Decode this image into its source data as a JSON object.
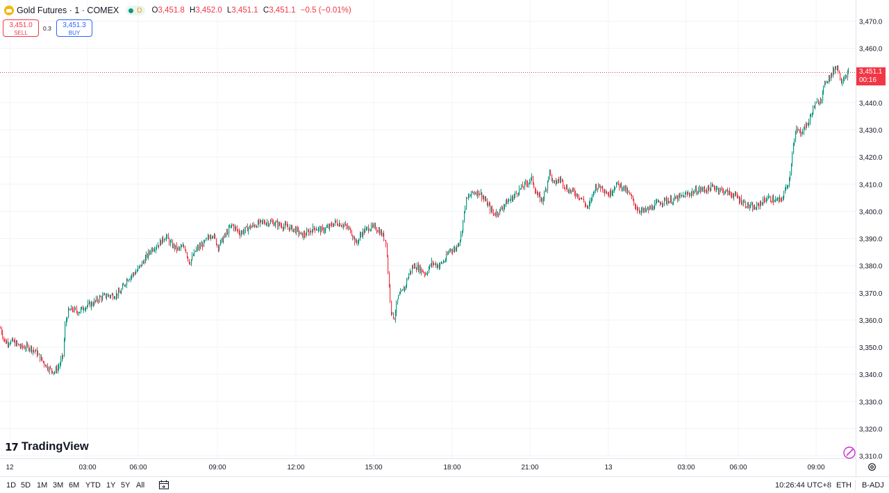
{
  "legend": {
    "symbol": "Gold Futures · 1 · COMEX",
    "status": "D",
    "ohlc": [
      {
        "k": "O",
        "v": "3,451.8"
      },
      {
        "k": "H",
        "v": "3,452.0"
      },
      {
        "k": "L",
        "v": "3,451.1"
      },
      {
        "k": "C",
        "v": "3,451.1"
      }
    ],
    "change": "−0.5 (−0.01%)"
  },
  "trade": {
    "sell_price": "3,451.0",
    "sell_label": "SELL",
    "spread": "0.3",
    "buy_price": "3,451.3",
    "buy_label": "BUY"
  },
  "price_tag": {
    "price": "3,451.1",
    "countdown": "00:16"
  },
  "brand": "TradingView",
  "bottom": {
    "timeframes": [
      "1D",
      "5D",
      "1M",
      "3M",
      "6M",
      "YTD",
      "1Y",
      "5Y",
      "All"
    ],
    "clock": "10:26:44 UTC+8",
    "session": "ETH",
    "adjust": "B-ADJ"
  },
  "colors": {
    "up": "#089981",
    "down": "#f23645",
    "grid": "#f0f3fa",
    "text": "#131722"
  },
  "chart_data": {
    "type": "candlestick",
    "y_ticks": [
      "3,310.0",
      "3,320.0",
      "3,330.0",
      "3,340.0",
      "3,350.0",
      "3,360.0",
      "3,370.0",
      "3,380.0",
      "3,390.0",
      "3,400.0",
      "3,410.0",
      "3,420.0",
      "3,430.0",
      "3,440.0",
      "3,450.0",
      "3,460.0",
      "3,470.0"
    ],
    "ylim": [
      3309,
      3476
    ],
    "x_ticks": [
      "12",
      "03:00",
      "06:00",
      "09:00",
      "12:00",
      "15:00",
      "18:00",
      "21:00",
      "13",
      "03:00",
      "06:00",
      "09:00"
    ],
    "last_price": 3451.1,
    "price_path": [
      [
        0,
        3357
      ],
      [
        6,
        3352
      ],
      [
        18,
        3352
      ],
      [
        30,
        3350
      ],
      [
        42,
        3350
      ],
      [
        52,
        3348
      ],
      [
        60,
        3345
      ],
      [
        70,
        3342
      ],
      [
        78,
        3341
      ],
      [
        84,
        3343
      ],
      [
        90,
        3347
      ],
      [
        93,
        3358
      ],
      [
        97,
        3363
      ],
      [
        103,
        3364
      ],
      [
        112,
        3363
      ],
      [
        122,
        3365
      ],
      [
        132,
        3366
      ],
      [
        142,
        3368
      ],
      [
        152,
        3369
      ],
      [
        162,
        3369
      ],
      [
        172,
        3370
      ],
      [
        182,
        3375
      ],
      [
        196,
        3378
      ],
      [
        207,
        3382
      ],
      [
        217,
        3386
      ],
      [
        228,
        3388
      ],
      [
        238,
        3391
      ],
      [
        245,
        3388
      ],
      [
        255,
        3386
      ],
      [
        265,
        3387
      ],
      [
        272,
        3381
      ],
      [
        282,
        3386
      ],
      [
        292,
        3388
      ],
      [
        305,
        3392
      ],
      [
        313,
        3387
      ],
      [
        323,
        3391
      ],
      [
        333,
        3395
      ],
      [
        345,
        3392
      ],
      [
        357,
        3394
      ],
      [
        367,
        3395
      ],
      [
        377,
        3396
      ],
      [
        390,
        3396
      ],
      [
        402,
        3395
      ],
      [
        416,
        3394
      ],
      [
        426,
        3393
      ],
      [
        434,
        3391
      ],
      [
        442,
        3392
      ],
      [
        452,
        3394
      ],
      [
        462,
        3393
      ],
      [
        472,
        3394
      ],
      [
        482,
        3396
      ],
      [
        494,
        3395
      ],
      [
        504,
        3393
      ],
      [
        512,
        3388
      ],
      [
        520,
        3392
      ],
      [
        530,
        3394
      ],
      [
        540,
        3394
      ],
      [
        548,
        3392
      ],
      [
        555,
        3389
      ],
      [
        559,
        3374
      ],
      [
        563,
        3362
      ],
      [
        567,
        3361
      ],
      [
        572,
        3368
      ],
      [
        577,
        3370
      ],
      [
        582,
        3372
      ],
      [
        588,
        3377
      ],
      [
        595,
        3380
      ],
      [
        603,
        3379
      ],
      [
        612,
        3377
      ],
      [
        621,
        3381
      ],
      [
        631,
        3380
      ],
      [
        640,
        3382
      ],
      [
        647,
        3386
      ],
      [
        655,
        3386
      ],
      [
        663,
        3391
      ],
      [
        670,
        3404
      ],
      [
        680,
        3407
      ],
      [
        690,
        3407
      ],
      [
        700,
        3403
      ],
      [
        710,
        3399
      ],
      [
        718,
        3400
      ],
      [
        727,
        3403
      ],
      [
        737,
        3405
      ],
      [
        747,
        3408
      ],
      [
        756,
        3410
      ],
      [
        765,
        3412
      ],
      [
        772,
        3406
      ],
      [
        780,
        3404
      ],
      [
        786,
        3409
      ],
      [
        790,
        3415
      ],
      [
        796,
        3410
      ],
      [
        806,
        3412
      ],
      [
        816,
        3408
      ],
      [
        826,
        3407
      ],
      [
        836,
        3405
      ],
      [
        846,
        3401
      ],
      [
        856,
        3409
      ],
      [
        866,
        3409
      ],
      [
        876,
        3406
      ],
      [
        886,
        3410
      ],
      [
        896,
        3409
      ],
      [
        906,
        3406
      ],
      [
        916,
        3401
      ],
      [
        926,
        3400
      ],
      [
        936,
        3401
      ],
      [
        946,
        3403
      ],
      [
        956,
        3404
      ],
      [
        966,
        3404
      ],
      [
        976,
        3405
      ],
      [
        986,
        3406
      ],
      [
        996,
        3407
      ],
      [
        1006,
        3408
      ],
      [
        1016,
        3408
      ],
      [
        1026,
        3409
      ],
      [
        1036,
        3408
      ],
      [
        1046,
        3407
      ],
      [
        1056,
        3406
      ],
      [
        1066,
        3404
      ],
      [
        1076,
        3402
      ],
      [
        1086,
        3401
      ],
      [
        1094,
        3403
      ],
      [
        1104,
        3405
      ],
      [
        1114,
        3404
      ],
      [
        1124,
        3404
      ],
      [
        1130,
        3408
      ],
      [
        1136,
        3412
      ],
      [
        1140,
        3422
      ],
      [
        1146,
        3430
      ],
      [
        1152,
        3429
      ],
      [
        1158,
        3431
      ],
      [
        1164,
        3433
      ],
      [
        1170,
        3438
      ],
      [
        1176,
        3440
      ],
      [
        1182,
        3442
      ],
      [
        1188,
        3448
      ],
      [
        1196,
        3450
      ],
      [
        1204,
        3454
      ],
      [
        1210,
        3448
      ],
      [
        1216,
        3450
      ],
      [
        1222,
        3451.1
      ]
    ]
  }
}
